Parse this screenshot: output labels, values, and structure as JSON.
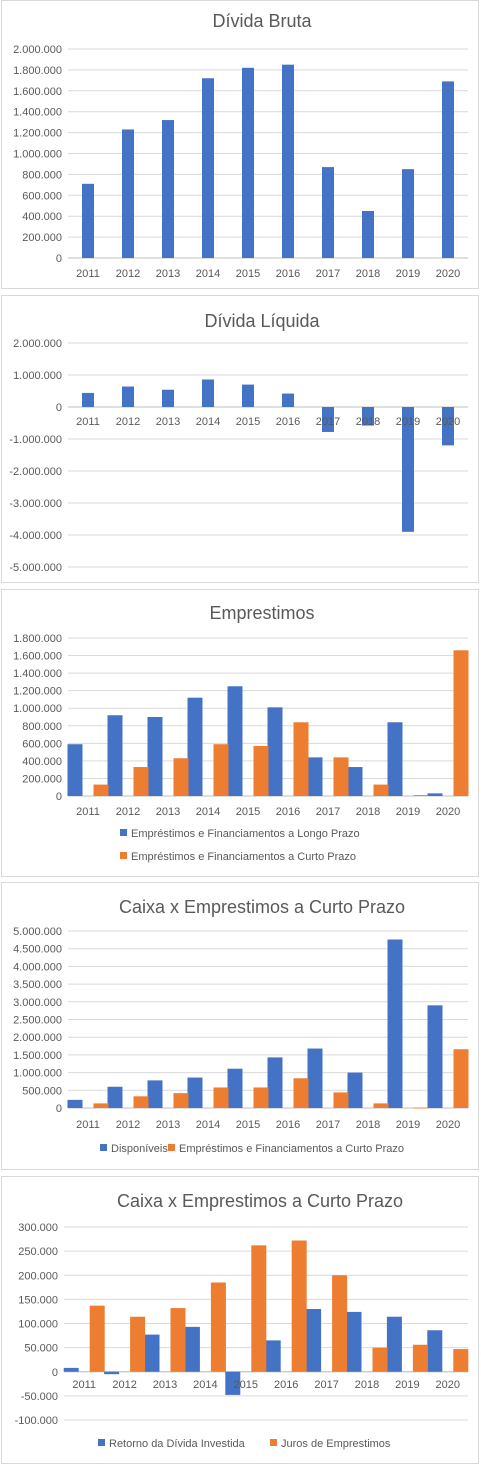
{
  "colors": {
    "blue": "#4472c4",
    "orange": "#ed7d31",
    "grid": "#d9d9d9",
    "axis": "#bfbfbf",
    "text": "#595959"
  },
  "chart_data": [
    {
      "type": "bar",
      "title": "Dívida Bruta",
      "categories": [
        "2011",
        "2012",
        "2013",
        "2014",
        "2015",
        "2016",
        "2017",
        "2018",
        "2019",
        "2020"
      ],
      "yticks": [
        "0",
        "200.000",
        "400.000",
        "600.000",
        "800.000",
        "1.000.000",
        "1.200.000",
        "1.400.000",
        "1.600.000",
        "1.800.000",
        "2.000.000"
      ],
      "ylim": [
        0,
        2000000
      ],
      "grid": true,
      "legend": "none",
      "series": [
        {
          "values": [
            710000,
            1230000,
            1320000,
            1720000,
            1820000,
            1850000,
            870000,
            450000,
            850000,
            1690000
          ]
        }
      ]
    },
    {
      "type": "bar",
      "title": "Dívida Líquida",
      "categories": [
        "2011",
        "2012",
        "2013",
        "2014",
        "2015",
        "2016",
        "2017",
        "2018",
        "2019",
        "2020"
      ],
      "yticks": [
        "-5.000.000",
        "-4.000.000",
        "-3.000.000",
        "-2.000.000",
        "-1.000.000",
        "0",
        "1.000.000",
        "2.000.000"
      ],
      "ylim": [
        -5000000,
        2000000
      ],
      "grid": true,
      "legend": "none",
      "series": [
        {
          "values": [
            440000,
            640000,
            540000,
            860000,
            700000,
            420000,
            -780000,
            -580000,
            -3900000,
            -1200000
          ]
        }
      ]
    },
    {
      "type": "bar",
      "title": "Emprestimos",
      "categories": [
        "2011",
        "2012",
        "2013",
        "2014",
        "2015",
        "2016",
        "2017",
        "2018",
        "2019",
        "2020"
      ],
      "yticks": [
        "0",
        "200.000",
        "400.000",
        "600.000",
        "800.000",
        "1.000.000",
        "1.200.000",
        "1.400.000",
        "1.600.000",
        "1.800.000"
      ],
      "ylim": [
        0,
        1800000
      ],
      "grid": true,
      "legend": "bottom",
      "series": [
        {
          "name": "Empréstimos e Financiamentos a Longo Prazo",
          "values": [
            590000,
            920000,
            900000,
            1120000,
            1250000,
            1010000,
            440000,
            330000,
            840000,
            30000
          ]
        },
        {
          "name": "Empréstimos e Financiamentos a Curto Prazo",
          "values": [
            130000,
            330000,
            430000,
            590000,
            570000,
            840000,
            440000,
            130000,
            10000,
            1660000
          ]
        }
      ]
    },
    {
      "type": "bar",
      "title": "Caixa x Emprestimos a Curto Prazo",
      "categories": [
        "2011",
        "2012",
        "2013",
        "2014",
        "2015",
        "2016",
        "2017",
        "2018",
        "2019",
        "2020"
      ],
      "yticks": [
        "0",
        "500.000",
        "1.000.000",
        "1.500.000",
        "2.000.000",
        "2.500.000",
        "3.000.000",
        "3.500.000",
        "4.000.000",
        "4.500.000",
        "5.000.000"
      ],
      "ylim": [
        0,
        5000000
      ],
      "grid": true,
      "legend": "bottom",
      "series": [
        {
          "name": "Disponíveis",
          "values": [
            230000,
            600000,
            780000,
            860000,
            1110000,
            1430000,
            1680000,
            1000000,
            4760000,
            2900000
          ]
        },
        {
          "name": "Empréstimos e Financiamentos a Curto Prazo",
          "values": [
            130000,
            330000,
            420000,
            580000,
            580000,
            840000,
            440000,
            130000,
            10000,
            1660000
          ]
        }
      ]
    },
    {
      "type": "bar",
      "title": "Caixa x Emprestimos a Curto Prazo",
      "categories": [
        "2011",
        "2012",
        "2013",
        "2014",
        "2015",
        "2016",
        "2017",
        "2018",
        "2019",
        "2020"
      ],
      "yticks": [
        "-100.000",
        "-50.000",
        "0",
        "50.000",
        "100.000",
        "150.000",
        "200.000",
        "250.000",
        "300.000"
      ],
      "ylim": [
        -100000,
        300000
      ],
      "grid": true,
      "legend": "bottom",
      "series": [
        {
          "name": "Retorno da Dívida Investida",
          "values": [
            8000,
            -5000,
            77000,
            93000,
            -48000,
            65000,
            130000,
            124000,
            114000,
            86000
          ]
        },
        {
          "name": "Juros de Emprestimos",
          "values": [
            137000,
            114000,
            132000,
            185000,
            262000,
            272000,
            200000,
            50000,
            56000,
            47000
          ]
        }
      ]
    }
  ]
}
